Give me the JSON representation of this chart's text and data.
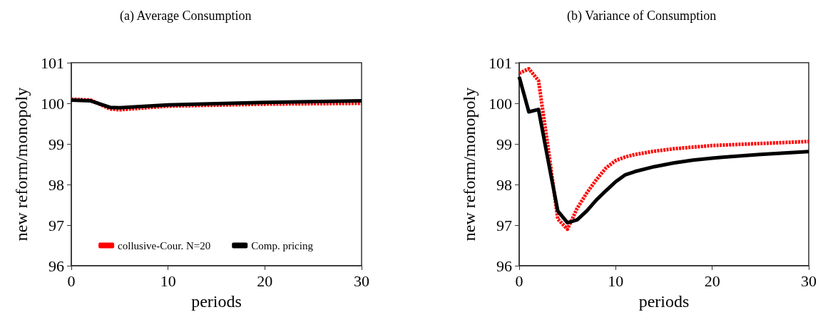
{
  "chart_data": [
    {
      "type": "line",
      "title": "(a) Average Consumption",
      "xlabel": "periods",
      "ylabel": "new reform/monopoly",
      "xlim": [
        0,
        30
      ],
      "xticks": [
        0,
        10,
        20,
        30
      ],
      "ylim": [
        96,
        101
      ],
      "yticks": [
        96,
        97,
        98,
        99,
        100,
        101
      ],
      "grid": false,
      "legend": "bottom",
      "marker": "none",
      "series": [
        {
          "name": "collusive-Cour. N=20",
          "color": "#ff0000",
          "line_style": "dashed",
          "x": [
            0,
            2,
            4,
            5,
            6,
            10,
            20,
            30
          ],
          "values": [
            100.1,
            100.08,
            99.86,
            99.84,
            99.86,
            99.93,
            99.98,
            100.0
          ]
        },
        {
          "name": "Comp. pricing",
          "color": "#000000",
          "line_style": "solid",
          "x": [
            0,
            2,
            4,
            5,
            10,
            20,
            30
          ],
          "values": [
            100.08,
            100.06,
            99.9,
            99.89,
            99.96,
            100.02,
            100.06
          ]
        }
      ]
    },
    {
      "type": "line",
      "title": "(b) Variance of Consumption",
      "xlabel": "periods",
      "ylabel": "new reform/monopoly",
      "xlim": [
        0,
        30
      ],
      "xticks": [
        0,
        10,
        20,
        30
      ],
      "ylim": [
        96,
        101
      ],
      "yticks": [
        96,
        97,
        98,
        99,
        100,
        101
      ],
      "grid": false,
      "legend": false,
      "marker": "none",
      "series": [
        {
          "color": "#ff0000",
          "line_style": "dashed",
          "x": [
            0,
            1,
            2,
            3,
            4,
            5,
            6,
            7,
            8,
            9,
            10,
            11,
            12,
            14,
            16,
            18,
            20,
            22,
            25,
            30
          ],
          "values": [
            100.74,
            100.85,
            100.56,
            98.9,
            97.15,
            96.9,
            97.41,
            97.79,
            98.12,
            98.41,
            98.59,
            98.68,
            98.74,
            98.82,
            98.88,
            98.92,
            98.96,
            98.98,
            99.01,
            99.06
          ]
        },
        {
          "color": "#000000",
          "line_style": "solid",
          "x": [
            0,
            1,
            2,
            3,
            4,
            5,
            6,
            7,
            8,
            9,
            10,
            11,
            12,
            14,
            16,
            18,
            20,
            22,
            25,
            30
          ],
          "values": [
            100.65,
            99.79,
            99.85,
            98.59,
            97.35,
            97.06,
            97.13,
            97.35,
            97.62,
            97.85,
            98.07,
            98.24,
            98.32,
            98.44,
            98.53,
            98.6,
            98.65,
            98.69,
            98.74,
            98.81
          ]
        }
      ]
    }
  ]
}
